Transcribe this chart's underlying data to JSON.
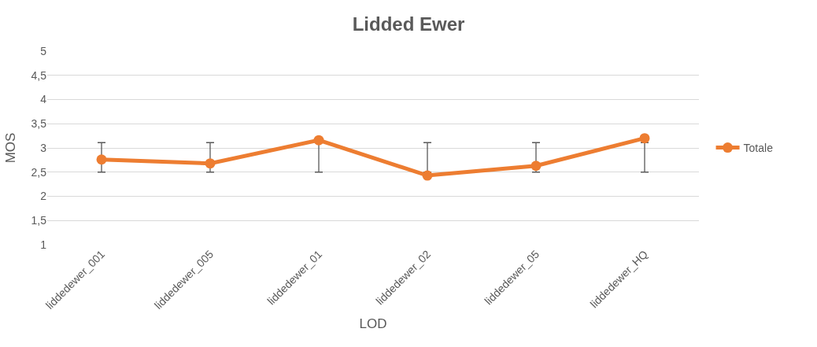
{
  "chart_data": {
    "type": "line",
    "title": "Lidded Ewer",
    "xlabel": "LOD",
    "ylabel": "MOS",
    "categories": [
      "liddedewer_001",
      "liddedewer_005",
      "liddedewer_01",
      "liddedewer_02",
      "liddedewer_05",
      "liddedewer_HQ"
    ],
    "series": [
      {
        "name": "Totale",
        "color": "#ed7d31",
        "values": [
          2.76,
          2.68,
          3.16,
          2.43,
          2.63,
          3.2
        ],
        "errors": [
          [
            2.5,
            3.11
          ],
          [
            2.5,
            3.11
          ],
          [
            2.5,
            3.11
          ],
          [
            2.5,
            3.11
          ],
          [
            2.5,
            3.11
          ],
          [
            2.5,
            3.11
          ]
        ]
      }
    ],
    "ylim": [
      1,
      5
    ],
    "yticks": [
      1,
      {
        "value": 1.5,
        "label": "1,5"
      },
      2,
      {
        "value": 2.5,
        "label": "2,5"
      },
      3,
      {
        "value": 3.5,
        "label": "3,5"
      },
      4,
      {
        "value": 4.5,
        "label": "4,5"
      },
      5
    ],
    "grid": "y",
    "legend": "right",
    "marker": "circle",
    "line_style": "solid"
  }
}
